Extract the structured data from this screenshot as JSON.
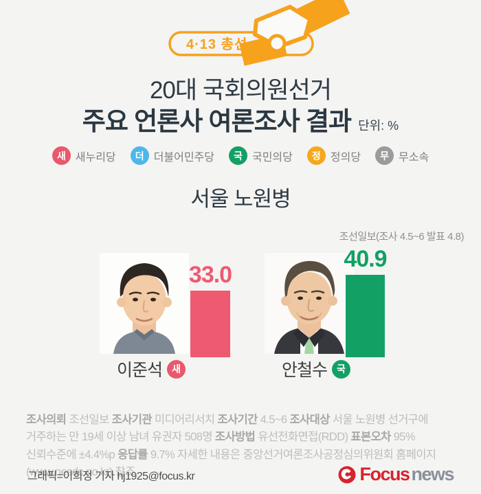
{
  "badge": {
    "label": "4·13 총선",
    "color": "#f6a21c"
  },
  "title": {
    "line1": "20대 국회의원선거",
    "line2": "주요 언론사 여론조사 결과",
    "unit_label": "단위: %"
  },
  "legend": {
    "items": [
      {
        "abbr": "새",
        "label": "새누리당",
        "color": "#e8596d"
      },
      {
        "abbr": "더",
        "label": "더불어민주당",
        "color": "#4bb8e9"
      },
      {
        "abbr": "국",
        "label": "국민의당",
        "color": "#13a065"
      },
      {
        "abbr": "정",
        "label": "정의당",
        "color": "#f5a81c"
      },
      {
        "abbr": "무",
        "label": "무소속",
        "color": "#9b9b9b"
      }
    ]
  },
  "region": {
    "title": "서울 노원병"
  },
  "chart_data": {
    "type": "bar",
    "title": "서울 노원병",
    "unit": "%",
    "source_note": "조선일보(조사 4.5~6 발표 4.8)",
    "categories": [
      "이준석",
      "안철수"
    ],
    "values": [
      33.0,
      40.9
    ],
    "value_labels": [
      "33.0",
      "40.9"
    ],
    "bar_colors": [
      "#ee5a70",
      "#13a065"
    ],
    "party_badges": [
      "새",
      "국"
    ],
    "ylim": [
      0,
      45
    ],
    "legend_position": "top",
    "grid": false
  },
  "candidates": [
    {
      "name": "이준석",
      "party_abbr": "새",
      "party_color": "#e8596d",
      "value_label": "33.0",
      "value_color": "#ee5a70"
    },
    {
      "name": "안철수",
      "party_abbr": "국",
      "party_color": "#13a065",
      "value_label": "40.9",
      "value_color": "#13a065"
    }
  ],
  "survey_details": {
    "segments": [
      {
        "label": "조사의뢰",
        "text": "조선일보"
      },
      {
        "label": "조사기관",
        "text": "미디어리서치"
      },
      {
        "label": "조사기간",
        "text": "4.5~6"
      },
      {
        "label": "조사대상",
        "text": "서울 노원병 선거구에 거주하는 만 19세 이상 남녀 유권자 508명"
      },
      {
        "label": "조사방법",
        "text": "유선전화면접(RDD)"
      },
      {
        "label": "표본오차",
        "text": "95% 신뢰수준에 ±4.4%p"
      },
      {
        "label": "응답률",
        "text": "9.7%"
      },
      {
        "label": "",
        "text": "자세한 내용은 중앙선거여론조사공정심의위원회 홈페이지(www.nesdc.go.kr) 참조"
      }
    ]
  },
  "footer": {
    "credit": "그래픽=이희정 기자 hj1925@focus.kr",
    "logo": {
      "word1": "Focus",
      "word2": "news",
      "brand_red": "#d6232e",
      "brand_gray": "#8b919a"
    }
  }
}
